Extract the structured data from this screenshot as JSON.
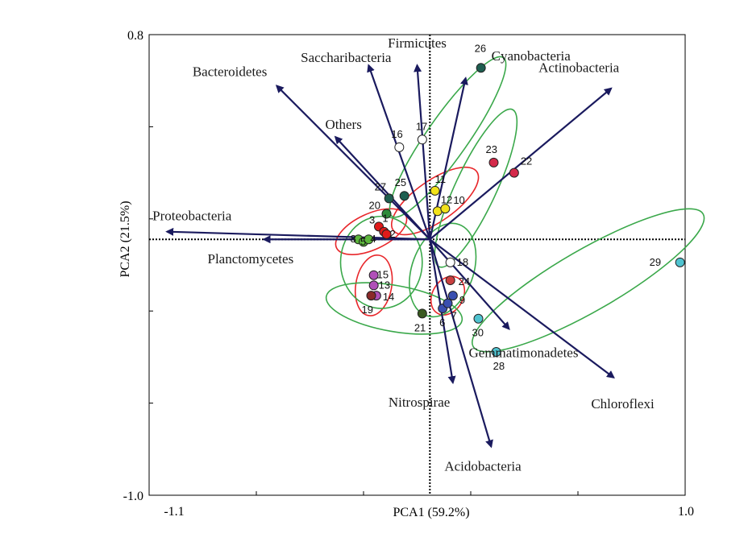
{
  "chart_data": {
    "type": "scatter",
    "subtype": "pca-biplot",
    "xlabel": "PCA1 (59.2%)",
    "ylabel": "PCA2 (21.5%)",
    "xlim": [
      -1.1,
      1.0
    ],
    "ylim": [
      -1.0,
      0.8
    ],
    "x_tick_labels": [
      "-1.1",
      "1.0"
    ],
    "y_tick_labels": [
      "0.8",
      "-1.0"
    ],
    "grid": false,
    "reference_lines": "dotted lines through origin",
    "vectors": [
      {
        "name": "Firmicutes",
        "x": -0.05,
        "y": 0.68
      },
      {
        "name": "Saccharibacteria",
        "x": -0.24,
        "y": 0.68
      },
      {
        "name": "Cyanobacteria",
        "x": 0.14,
        "y": 0.63
      },
      {
        "name": "Bacteroidetes",
        "x": -0.6,
        "y": 0.6
      },
      {
        "name": "Actinobacteria",
        "x": 0.71,
        "y": 0.59
      },
      {
        "name": "Others",
        "x": -0.37,
        "y": 0.4
      },
      {
        "name": "Proteobacteria",
        "x": -1.03,
        "y": 0.03
      },
      {
        "name": "Planctomycetes",
        "x": -0.65,
        "y": 0.0
      },
      {
        "name": "Gemmatimonadetes",
        "x": 0.31,
        "y": -0.35
      },
      {
        "name": "Nitrospirae",
        "x": 0.09,
        "y": -0.56
      },
      {
        "name": "Acidobacteria",
        "x": 0.24,
        "y": -0.81
      },
      {
        "name": "Chloroflexi",
        "x": 0.72,
        "y": -0.54
      }
    ],
    "points": [
      {
        "label": "26",
        "x": 0.2,
        "y": 0.67,
        "color": "#1e5e50"
      },
      {
        "label": "16",
        "x": -0.12,
        "y": 0.36,
        "color": "#ffffff"
      },
      {
        "label": "17",
        "x": -0.03,
        "y": 0.39,
        "color": "#ffffff"
      },
      {
        "label": "23",
        "x": 0.25,
        "y": 0.3,
        "color": "#d42a4a"
      },
      {
        "label": "22",
        "x": 0.33,
        "y": 0.26,
        "color": "#d42a4a"
      },
      {
        "label": "11",
        "x": 0.02,
        "y": 0.19,
        "color": "#f2e21a"
      },
      {
        "label": "12",
        "x": 0.03,
        "y": 0.11,
        "color": "#f2e21a"
      },
      {
        "label": "10",
        "x": 0.06,
        "y": 0.12,
        "color": "#f2e21a"
      },
      {
        "label": "27",
        "x": -0.16,
        "y": 0.16,
        "color": "#1e5e50"
      },
      {
        "label": "25",
        "x": -0.1,
        "y": 0.17,
        "color": "#1e5e50"
      },
      {
        "label": "20",
        "x": -0.17,
        "y": 0.1,
        "color": "#2e8b3a"
      },
      {
        "label": "3",
        "x": -0.2,
        "y": 0.05,
        "color": "#e01a1a"
      },
      {
        "label": "1",
        "x": -0.18,
        "y": 0.03,
        "color": "#e01a1a"
      },
      {
        "label": "2",
        "x": -0.17,
        "y": 0.02,
        "color": "#e01a1a"
      },
      {
        "label": "8",
        "x": -0.28,
        "y": 0.0,
        "color": "#5cb63c"
      },
      {
        "label": "5",
        "x": -0.26,
        "y": -0.01,
        "color": "#5cb63c"
      },
      {
        "label": "4",
        "x": -0.24,
        "y": 0.0,
        "color": "#5cb63c"
      },
      {
        "label": "29",
        "x": 0.98,
        "y": -0.09,
        "color": "#4fc3d0"
      },
      {
        "label": "18",
        "x": 0.08,
        "y": -0.09,
        "color": "#ffffff"
      },
      {
        "label": "15",
        "x": -0.22,
        "y": -0.14,
        "color": "#b050b8"
      },
      {
        "label": "13",
        "x": -0.22,
        "y": -0.18,
        "color": "#b050b8"
      },
      {
        "label": "14",
        "x": -0.21,
        "y": -0.22,
        "color": "#b050b8"
      },
      {
        "label": "19",
        "x": -0.23,
        "y": -0.22,
        "color": "#8a2a2a"
      },
      {
        "label": "24",
        "x": 0.08,
        "y": -0.16,
        "color": "#c94040"
      },
      {
        "label": "9",
        "x": 0.09,
        "y": -0.22,
        "color": "#3a4fb0"
      },
      {
        "label": "6",
        "x": 0.05,
        "y": -0.27,
        "color": "#3a4fb0"
      },
      {
        "label": "7",
        "x": 0.07,
        "y": -0.25,
        "color": "#3a4fb0"
      },
      {
        "label": "21",
        "x": -0.03,
        "y": -0.29,
        "color": "#3a5a20"
      },
      {
        "label": "30",
        "x": 0.19,
        "y": -0.31,
        "color": "#4fc3d0"
      },
      {
        "label": "28",
        "x": 0.26,
        "y": -0.44,
        "color": "#4fc3d0"
      }
    ],
    "ellipses": [
      {
        "group": "red",
        "color": "#e8262a",
        "cx": 0.02,
        "cy": 0.15,
        "rx": 0.2,
        "ry": 0.08,
        "rotation_deg": -35
      },
      {
        "group": "red",
        "color": "#e8262a",
        "cx": -0.23,
        "cy": 0.03,
        "rx": 0.15,
        "ry": 0.07,
        "rotation_deg": -25
      },
      {
        "group": "red",
        "color": "#e8262a",
        "cx": -0.22,
        "cy": -0.18,
        "rx": 0.12,
        "ry": 0.07,
        "rotation_deg": -80
      },
      {
        "group": "red",
        "color": "#e8262a",
        "cx": 0.07,
        "cy": -0.22,
        "rx": 0.08,
        "ry": 0.06,
        "rotation_deg": -60
      },
      {
        "group": "green",
        "color": "#3aa84a",
        "cx": 0.07,
        "cy": 0.4,
        "rx": 0.38,
        "ry": 0.08,
        "rotation_deg": -55
      },
      {
        "group": "green",
        "color": "#3aa84a",
        "cx": 0.18,
        "cy": 0.2,
        "rx": 0.34,
        "ry": 0.08,
        "rotation_deg": -65
      },
      {
        "group": "green",
        "color": "#3aa84a",
        "cx": -0.19,
        "cy": -0.09,
        "rx": 0.16,
        "ry": 0.18,
        "rotation_deg": 0
      },
      {
        "group": "green",
        "color": "#3aa84a",
        "cx": -0.14,
        "cy": -0.27,
        "rx": 0.27,
        "ry": 0.09,
        "rotation_deg": 10
      },
      {
        "group": "green",
        "color": "#3aa84a",
        "cx": 0.05,
        "cy": -0.12,
        "rx": 0.19,
        "ry": 0.12,
        "rotation_deg": -70
      },
      {
        "group": "green",
        "color": "#3aa84a",
        "cx": 0.62,
        "cy": -0.16,
        "rx": 0.52,
        "ry": 0.12,
        "rotation_deg": -30
      }
    ],
    "vector_color": "#1a1a5e"
  }
}
